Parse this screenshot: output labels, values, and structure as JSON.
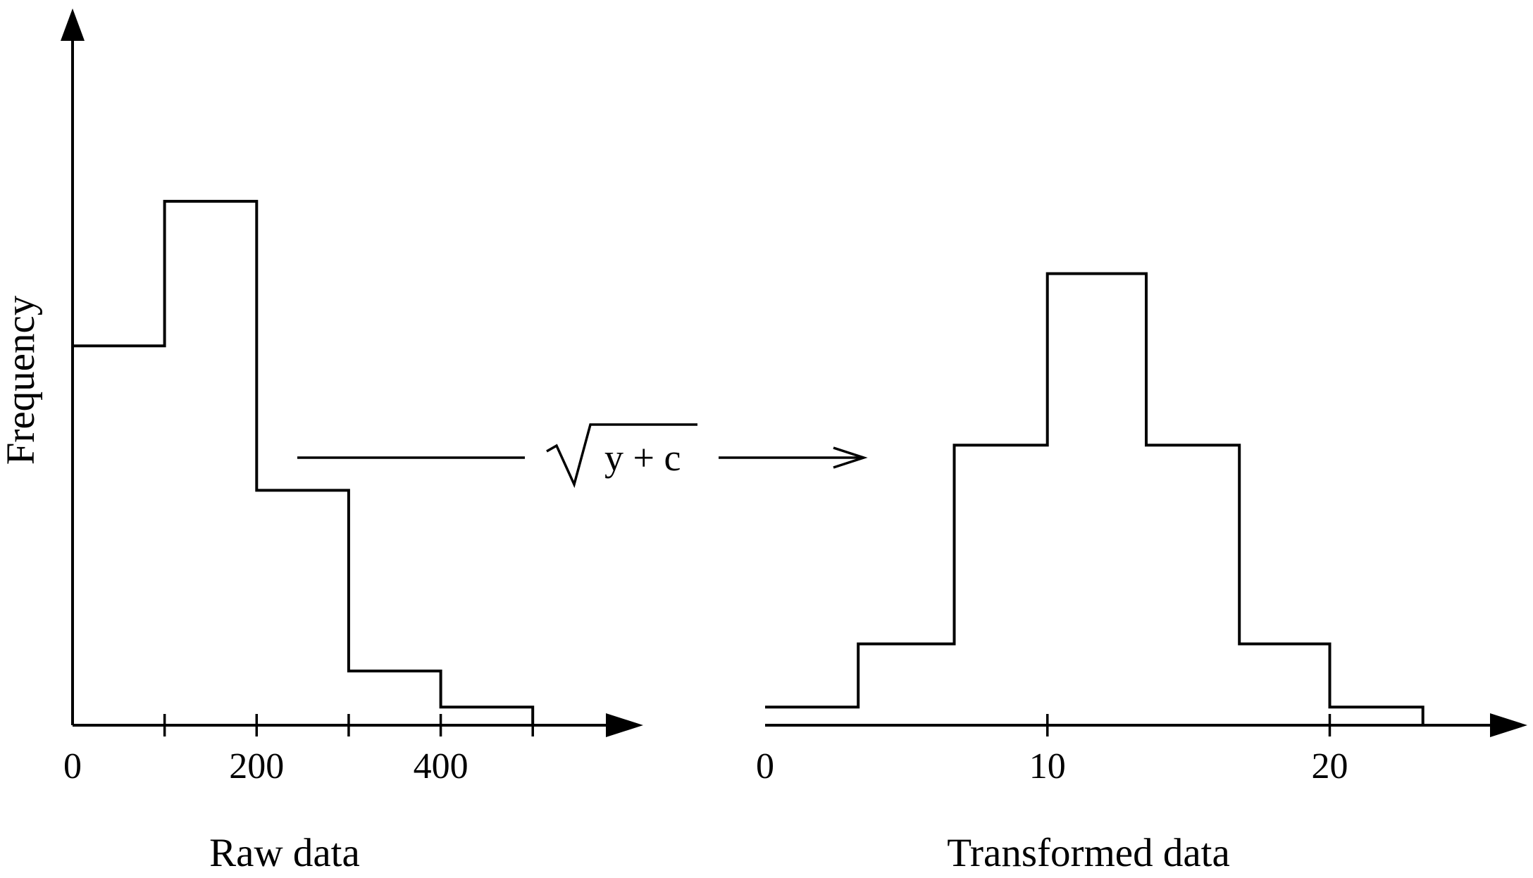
{
  "figure": {
    "ylabel": "Frequency",
    "transform_label": "y + c",
    "transform_symbol": "square-root"
  },
  "chart_data": [
    {
      "type": "histogram",
      "xlabel": "Raw data",
      "ylabel": "Frequency",
      "xlim": [
        0,
        620
      ],
      "x_ticks": [
        0,
        100,
        200,
        300,
        400,
        500
      ],
      "x_tick_labels": [
        "0",
        "",
        "200",
        "",
        "400",
        ""
      ],
      "bin_edges": [
        0,
        100,
        200,
        300,
        400,
        500
      ],
      "frequencies": [
        21,
        29,
        13,
        3,
        1
      ],
      "ylim": [
        0,
        38
      ],
      "grid": false
    },
    {
      "type": "histogram",
      "xlabel": "Transformed data",
      "ylabel": "Frequency",
      "xlim": [
        0,
        27
      ],
      "x_ticks": [
        0,
        10,
        20
      ],
      "x_tick_labels": [
        "0",
        "10",
        "20"
      ],
      "bin_edges": [
        0,
        3.3,
        6.7,
        10,
        13.5,
        16.8,
        20,
        23.3
      ],
      "frequencies": [
        1,
        4.5,
        15.5,
        25,
        15.5,
        4.5,
        1
      ],
      "ylim": [
        0,
        38
      ],
      "grid": false
    }
  ]
}
